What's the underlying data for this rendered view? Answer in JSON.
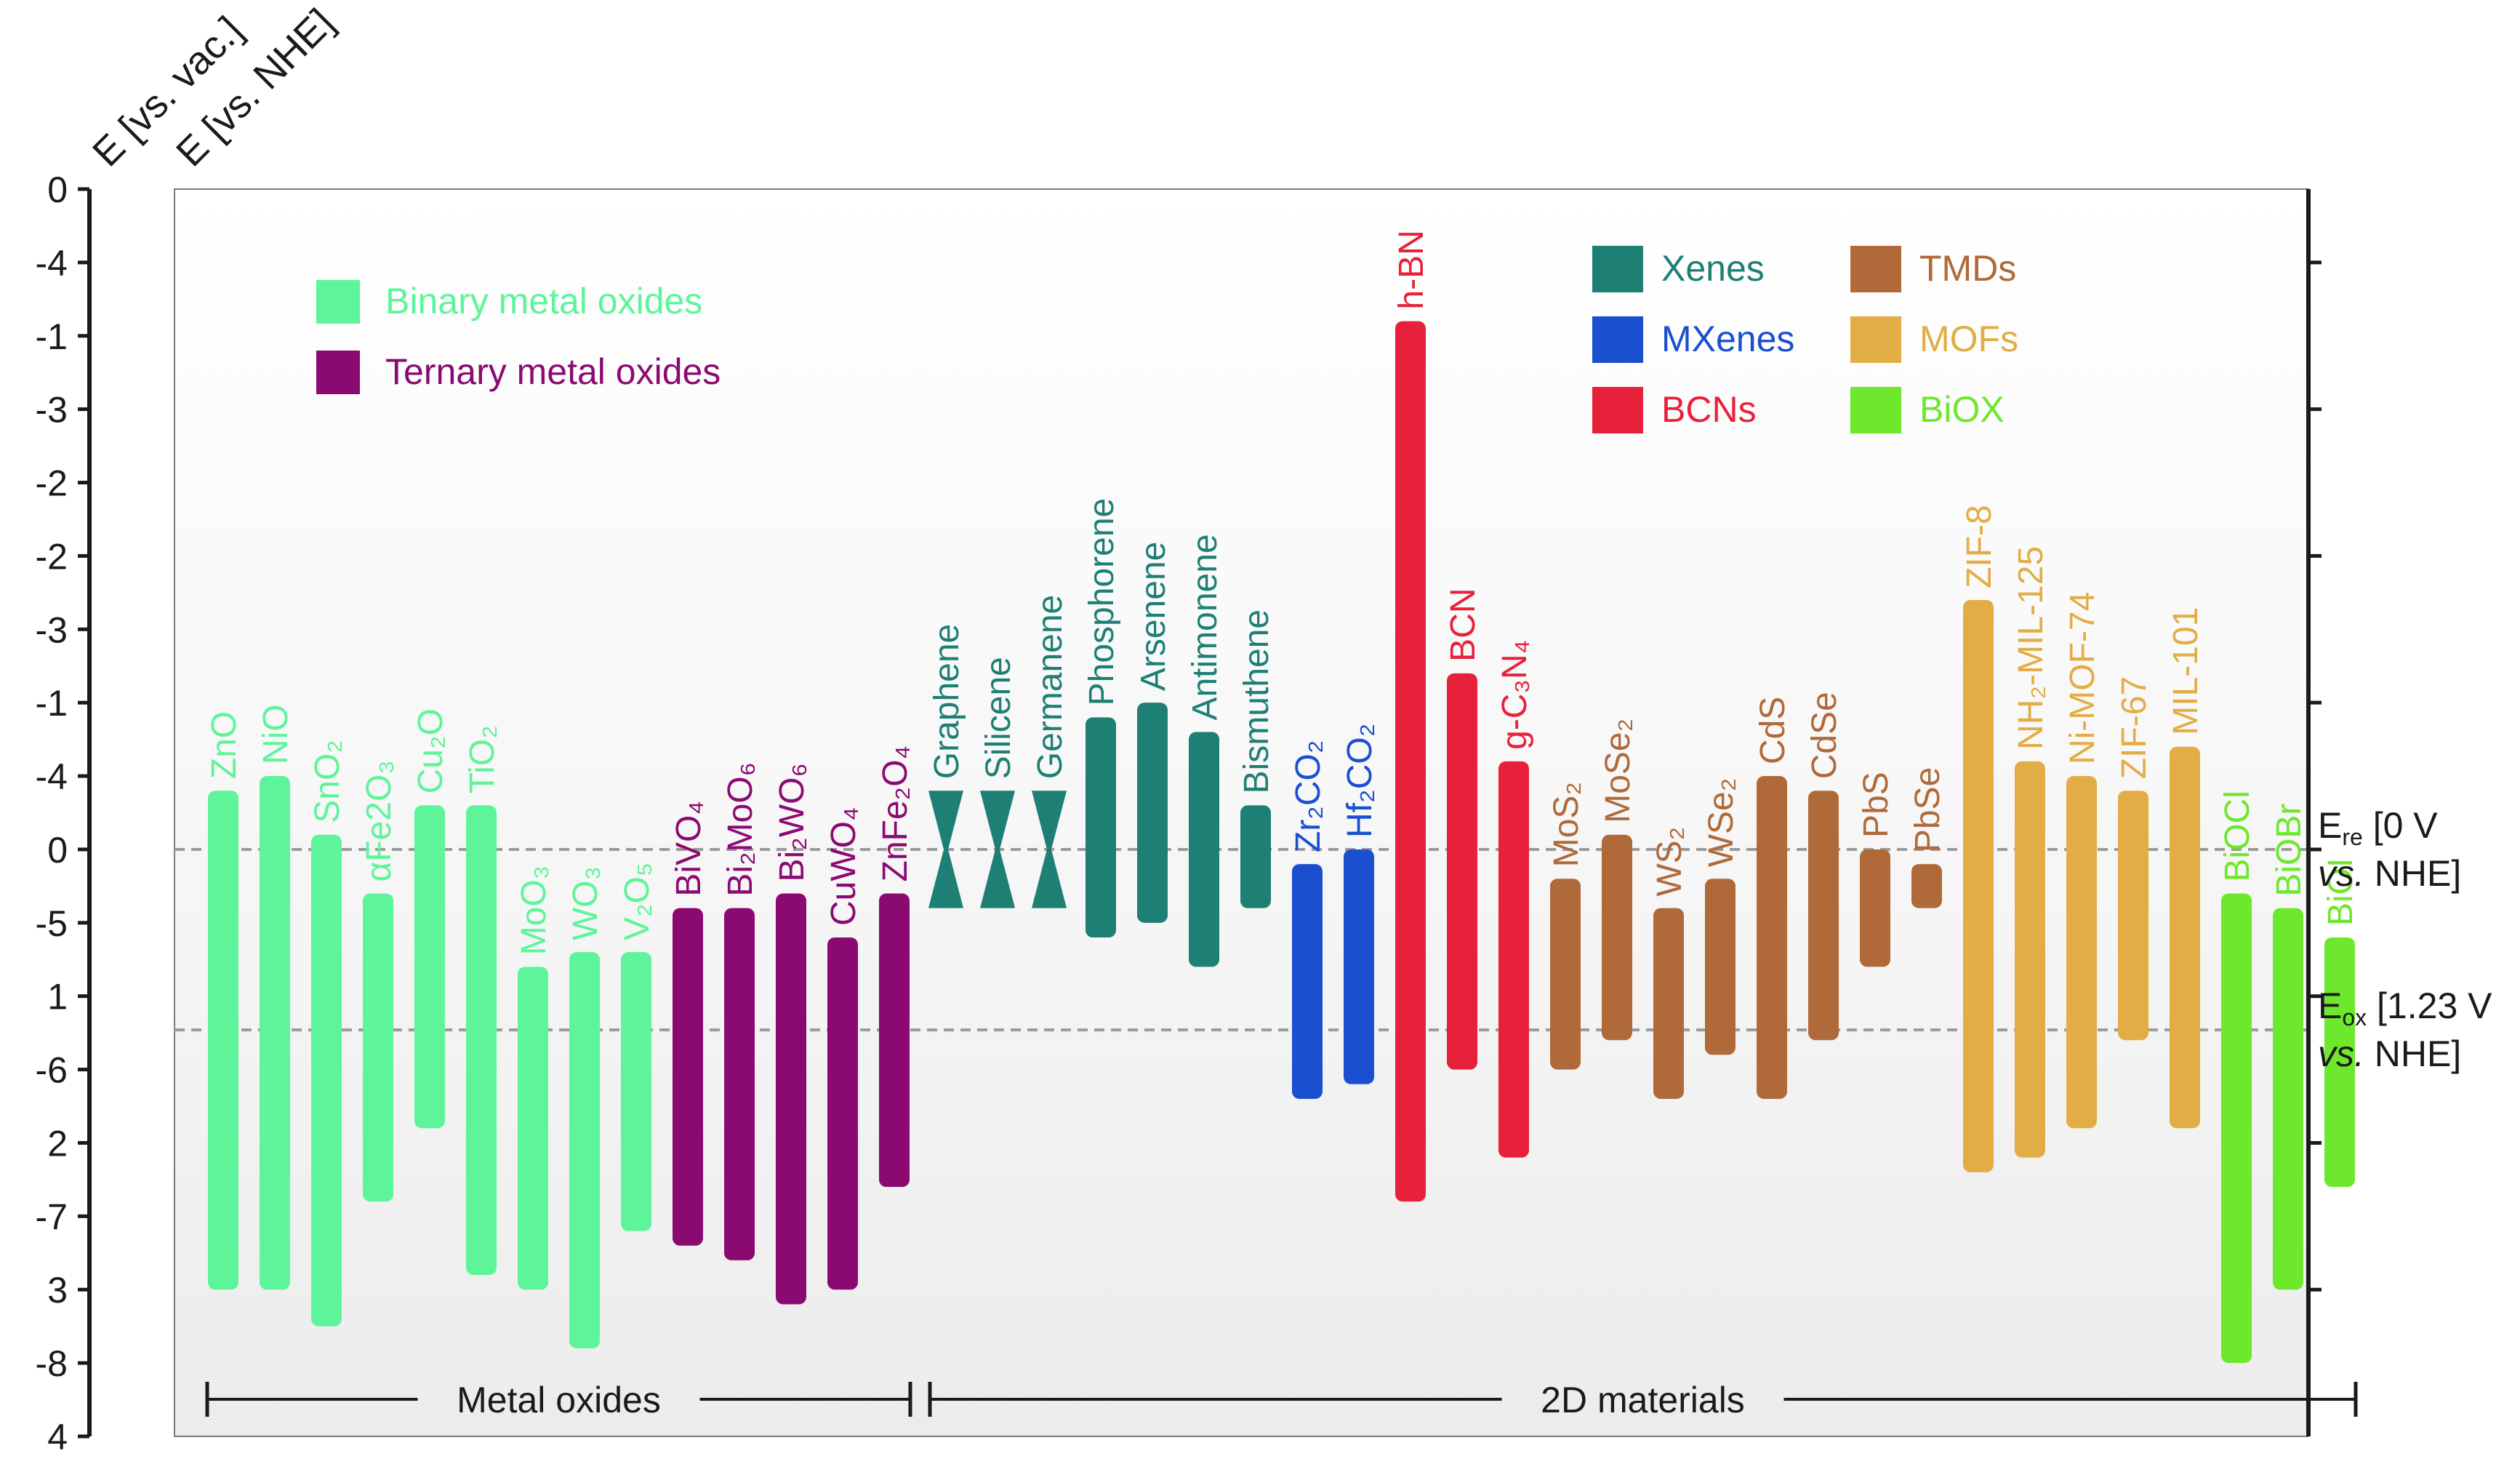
{
  "chart_data": {
    "type": "bar",
    "subtype": "floating-range (band edge positions)",
    "axis_labels": {
      "vac": "E [vs. vac.]",
      "nhe": "E [vs. NHE]"
    },
    "y_vac_ticks": [
      "0",
      "-4",
      "-1",
      "-3",
      "-2",
      "-2",
      "-3",
      "-1",
      "-4",
      "0",
      "-5",
      "1",
      "-6",
      "2",
      "-7",
      "3",
      "-8",
      "4"
    ],
    "y_nhe_ticks": [
      "0",
      "1",
      "2",
      "3"
    ],
    "y_range_nhe": [
      -4.5,
      4.0
    ],
    "reference_lines": [
      {
        "id": "ere",
        "value_nhe": 0.0,
        "label": "E",
        "sub": "re",
        "label_rest": " [0 V",
        "label_line2_italic": "vs.",
        "label_line2_rest": " NHE]"
      },
      {
        "id": "eox",
        "value_nhe": 1.23,
        "label": "E",
        "sub": "ox",
        "label_rest": " [1.23 V",
        "label_line2_italic": "vs.",
        "label_line2_rest": " NHE]"
      }
    ],
    "legend_left": [
      {
        "label": "Binary metal oxides",
        "color": "#5ef59a"
      },
      {
        "label": "Ternary metal oxides",
        "color": "#8b0a72"
      }
    ],
    "legend_right": [
      {
        "label": "Xenes",
        "color": "#1e7f74"
      },
      {
        "label": "TMDs",
        "color": "#b06a3a"
      },
      {
        "label": "MXenes",
        "color": "#1a4fd0"
      },
      {
        "label": "MOFs",
        "color": "#e3ad45"
      },
      {
        "label": "BCNs",
        "color": "#e8213a"
      },
      {
        "label": "BiOX",
        "color": "#6de82c"
      }
    ],
    "groups": [
      {
        "label": "Metal oxides",
        "from": 0,
        "to": 13
      },
      {
        "label": "2D materials",
        "from": 14,
        "to": 41
      }
    ],
    "colors": {
      "binary": "#5ef59a",
      "ternary": "#8b0a72",
      "xenes": "#1e7f74",
      "mxenes": "#1a4fd0",
      "bcns": "#e8213a",
      "tmds": "#b06a3a",
      "mofs": "#e3ad45",
      "biox": "#6de82c"
    },
    "materials": [
      {
        "name": "ZnO",
        "cat": "binary",
        "cb": -0.4,
        "vb": 3.0
      },
      {
        "name": "NiO",
        "cat": "binary",
        "cb": -0.5,
        "vb": 3.0
      },
      {
        "name": "SnO₂",
        "cat": "binary",
        "cb": -0.1,
        "vb": 3.25
      },
      {
        "name": "αFe2O₃",
        "cat": "binary",
        "cb": 0.3,
        "vb": 2.4
      },
      {
        "name": "Cu₂O",
        "cat": "binary",
        "cb": -0.3,
        "vb": 1.9
      },
      {
        "name": "TiO₂",
        "cat": "binary",
        "cb": -0.3,
        "vb": 2.9
      },
      {
        "name": "MoO₃",
        "cat": "binary",
        "cb": 0.8,
        "vb": 3.0
      },
      {
        "name": "WO₃",
        "cat": "binary",
        "cb": 0.7,
        "vb": 3.4
      },
      {
        "name": "V₂O₅",
        "cat": "binary",
        "cb": 0.7,
        "vb": 2.6
      },
      {
        "name": "BiVO₄",
        "cat": "ternary",
        "cb": 0.4,
        "vb": 2.7
      },
      {
        "name": "Bi₂MoO₆",
        "cat": "ternary",
        "cb": 0.4,
        "vb": 2.8
      },
      {
        "name": "Bi₂WO₆",
        "cat": "ternary",
        "cb": 0.3,
        "vb": 3.1
      },
      {
        "name": "CuWO₄",
        "cat": "ternary",
        "cb": 0.6,
        "vb": 3.0
      },
      {
        "name": "ZnFe₂O₄",
        "cat": "ternary",
        "cb": 0.3,
        "vb": 2.3
      },
      {
        "name": "Graphene",
        "cat": "xenes",
        "cb": -0.4,
        "vb": 0.4,
        "cone": true
      },
      {
        "name": "Silicene",
        "cat": "xenes",
        "cb": -0.4,
        "vb": 0.4,
        "cone": true
      },
      {
        "name": "Germanene",
        "cat": "xenes",
        "cb": -0.4,
        "vb": 0.4,
        "cone": true
      },
      {
        "name": "Phosphorene",
        "cat": "xenes",
        "cb": -0.9,
        "vb": 0.6
      },
      {
        "name": "Arsenene",
        "cat": "xenes",
        "cb": -1.0,
        "vb": 0.5
      },
      {
        "name": "Antimonene",
        "cat": "xenes",
        "cb": -0.8,
        "vb": 0.8
      },
      {
        "name": "Bismuthene",
        "cat": "xenes",
        "cb": -0.3,
        "vb": 0.4
      },
      {
        "name": "Zr₂CO₂",
        "cat": "mxenes",
        "cb": 0.1,
        "vb": 1.7
      },
      {
        "name": "Hf₂CO₂",
        "cat": "mxenes",
        "cb": 0.0,
        "vb": 1.6
      },
      {
        "name": "h-BN",
        "cat": "bcns",
        "cb": -3.6,
        "vb": 2.4
      },
      {
        "name": "BCN",
        "cat": "bcns",
        "cb": -1.2,
        "vb": 1.5
      },
      {
        "name": "g-C₃N₄",
        "cat": "bcns",
        "cb": -0.6,
        "vb": 2.1
      },
      {
        "name": "MoS₂",
        "cat": "tmds",
        "cb": 0.2,
        "vb": 1.5
      },
      {
        "name": "MoSe₂",
        "cat": "tmds",
        "cb": -0.1,
        "vb": 1.3
      },
      {
        "name": "WS₂",
        "cat": "tmds",
        "cb": 0.4,
        "vb": 1.7
      },
      {
        "name": "WSe₂",
        "cat": "tmds",
        "cb": 0.2,
        "vb": 1.4
      },
      {
        "name": "CdS",
        "cat": "tmds",
        "cb": -0.5,
        "vb": 1.7
      },
      {
        "name": "CdSe",
        "cat": "tmds",
        "cb": -0.4,
        "vb": 1.3
      },
      {
        "name": "PbS",
        "cat": "tmds",
        "cb": 0.0,
        "vb": 0.8
      },
      {
        "name": "PbSe",
        "cat": "tmds",
        "cb": 0.1,
        "vb": 0.4
      },
      {
        "name": "ZIF-8",
        "cat": "mofs",
        "cb": -1.7,
        "vb": 2.2
      },
      {
        "name": "NH₂-MIL-125",
        "cat": "mofs",
        "cb": -0.6,
        "vb": 2.1
      },
      {
        "name": "Ni-MOF-74",
        "cat": "mofs",
        "cb": -0.5,
        "vb": 1.9
      },
      {
        "name": "ZIF-67",
        "cat": "mofs",
        "cb": -0.4,
        "vb": 1.3
      },
      {
        "name": "MIL-101",
        "cat": "mofs",
        "cb": -0.7,
        "vb": 1.9
      },
      {
        "name": "BiOCl",
        "cat": "biox",
        "cb": 0.3,
        "vb": 3.5
      },
      {
        "name": "BiOBr",
        "cat": "biox",
        "cb": 0.4,
        "vb": 3.0
      },
      {
        "name": "BiOI",
        "cat": "biox",
        "cb": 0.6,
        "vb": 2.3
      }
    ]
  }
}
